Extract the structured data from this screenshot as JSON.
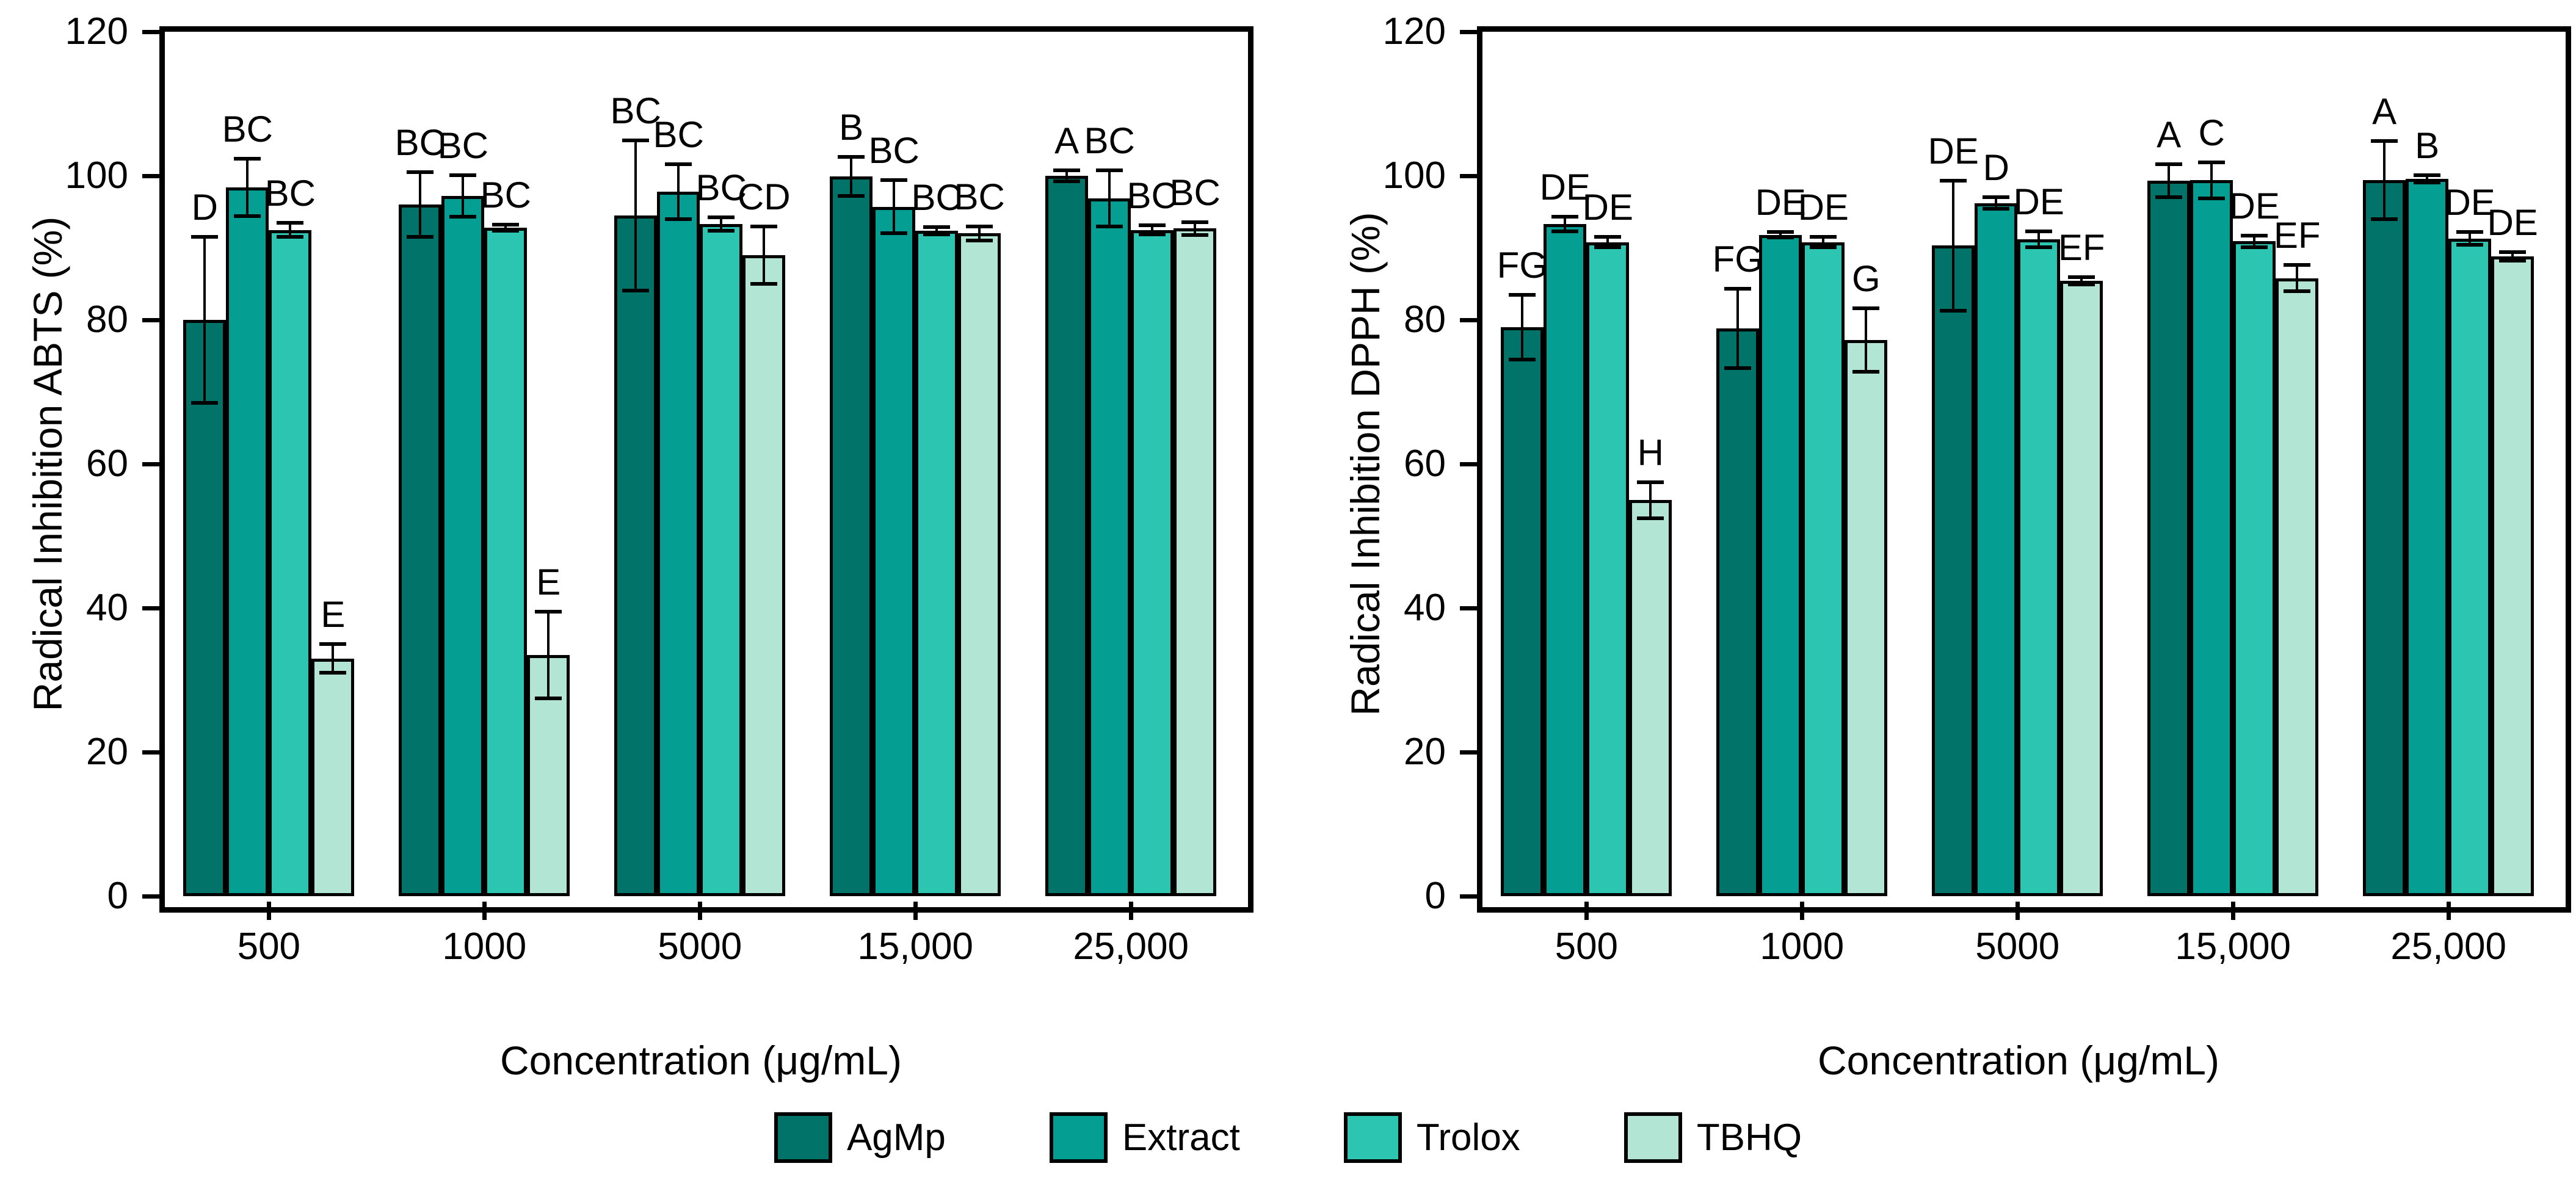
{
  "figure": {
    "background": "#FFFFFF"
  },
  "legend": {
    "items": [
      {
        "label": "AgMp",
        "color": "#027368"
      },
      {
        "label": "Extract",
        "color": "#049E93"
      },
      {
        "label": "Trolox",
        "color": "#2BC5B2"
      },
      {
        "label": "TBHQ",
        "color": "#B2E5D3"
      }
    ]
  },
  "chart_data": [
    {
      "type": "bar",
      "title": "",
      "ylabel": "Radical Inhibition ABTS (%)",
      "xlabel": "Concentration (μg/mL)",
      "ylim": [
        0,
        120
      ],
      "yticks": [
        0,
        20,
        40,
        60,
        80,
        100,
        120
      ],
      "grid": false,
      "legend_position": "bottom-shared",
      "categories": [
        "500",
        "1000",
        "5000",
        "15,000",
        "25,000"
      ],
      "series": [
        {
          "name": "AgMp",
          "color": "#027368",
          "values": [
            80,
            96,
            94.5,
            99.9,
            100
          ],
          "errors": [
            11.5,
            4.5,
            10.4,
            2.7,
            0.8
          ],
          "sig_labels": [
            "D",
            "BC",
            "BC",
            "B",
            "A"
          ]
        },
        {
          "name": "Extract",
          "color": "#049E93",
          "values": [
            98.4,
            97.2,
            97.8,
            95.7,
            96.9
          ],
          "errors": [
            4,
            2.9,
            3.8,
            3.7,
            3.9
          ],
          "sig_labels": [
            "BC",
            "BC",
            "BC",
            "BC",
            "BC"
          ]
        },
        {
          "name": "Trolox",
          "color": "#2BC5B2",
          "values": [
            92.5,
            92.8,
            93.3,
            92.4,
            92.5
          ],
          "errors": [
            1,
            0.4,
            0.9,
            0.5,
            0.6
          ],
          "sig_labels": [
            "BC",
            "BC",
            "BC",
            "BC",
            "BC"
          ]
        },
        {
          "name": "TBHQ",
          "color": "#B2E5D3",
          "values": [
            33,
            33.5,
            89,
            92,
            92.7
          ],
          "errors": [
            2,
            6,
            4,
            1,
            0.9
          ],
          "sig_labels": [
            "E",
            "E",
            "CD",
            "BC",
            "BC"
          ]
        }
      ]
    },
    {
      "type": "bar",
      "title": "",
      "ylabel": "Radical Inhibition DPPH (%)",
      "xlabel": "Concentration (μg/mL)",
      "ylim": [
        0,
        120
      ],
      "yticks": [
        0,
        20,
        40,
        60,
        80,
        100,
        120
      ],
      "grid": false,
      "legend_position": "bottom-shared",
      "categories": [
        "500",
        "1000",
        "5000",
        "15,000",
        "25,000"
      ],
      "series": [
        {
          "name": "AgMp",
          "color": "#027368",
          "values": [
            79,
            78.8,
            90.3,
            99.3,
            99.4
          ],
          "errors": [
            4.5,
            5.5,
            9,
            2.3,
            5.4
          ],
          "sig_labels": [
            "FG",
            "FG",
            "DE",
            "A",
            "A"
          ]
        },
        {
          "name": "Extract",
          "color": "#049E93",
          "values": [
            93.3,
            91.8,
            96.2,
            99.4,
            99.6
          ],
          "errors": [
            1,
            0.4,
            0.8,
            2.5,
            0.5
          ],
          "sig_labels": [
            "DE",
            "DE",
            "D",
            "C",
            "B"
          ]
        },
        {
          "name": "Trolox",
          "color": "#2BC5B2",
          "values": [
            90.8,
            90.8,
            91.2,
            90.9,
            91.3
          ],
          "errors": [
            0.7,
            0.7,
            1.1,
            0.8,
            0.9
          ],
          "sig_labels": [
            "DE",
            "DE",
            "DE",
            "DE",
            "DE"
          ]
        },
        {
          "name": "TBHQ",
          "color": "#B2E5D3",
          "values": [
            55,
            77.2,
            85.4,
            85.8,
            88.8
          ],
          "errors": [
            2.5,
            4.4,
            0.5,
            1.8,
            0.6
          ],
          "sig_labels": [
            "H",
            "G",
            "EF",
            "EF",
            "DE"
          ]
        }
      ]
    }
  ]
}
